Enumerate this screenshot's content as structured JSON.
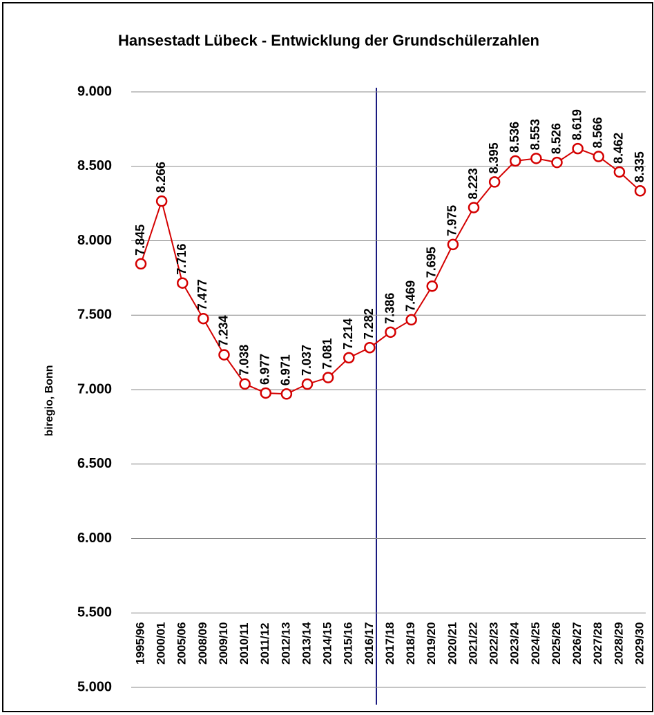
{
  "chart_data": {
    "type": "line",
    "title": "Hansestadt Lübeck - Entwicklung der Grundschülerzahlen",
    "y_label": "biregio, Bonn",
    "categories": [
      "1995/96",
      "2000/01",
      "2005/06",
      "2008/09",
      "2009/10",
      "2010/11",
      "2011/12",
      "2012/13",
      "2013/14",
      "2014/15",
      "2015/16",
      "2016/17",
      "2017/18",
      "2018/19",
      "2019/20",
      "2020/21",
      "2021/22",
      "2022/23",
      "2023/24",
      "2024/25",
      "2025/26",
      "2026/27",
      "2027/28",
      "2028/29",
      "2029/30"
    ],
    "series": [
      {
        "color": "#d40000",
        "values": [
          7845,
          8266,
          7716,
          7477,
          7234,
          7038,
          6977,
          6971,
          7037,
          7081,
          7214,
          7282,
          7386,
          7469,
          7695,
          7975,
          8223,
          8395,
          8536,
          8553,
          8526,
          8619,
          8566,
          8462,
          8335
        ],
        "value_labels": [
          "7.845",
          "8.266",
          "7.716",
          "7.477",
          "7.234",
          "7.038",
          "6.977",
          "6.971",
          "7.037",
          "7.081",
          "7.214",
          "7.282",
          "7.386",
          "7.469",
          "7.695",
          "7.975",
          "8.223",
          "8.395",
          "8.536",
          "8.553",
          "8.526",
          "8.619",
          "8.566",
          "8.462",
          "8.335"
        ]
      }
    ],
    "ylim": [
      5000,
      9000
    ],
    "yticks": [
      {
        "value": 5000,
        "label": "5.000"
      },
      {
        "value": 5500,
        "label": "5.500"
      },
      {
        "value": 6000,
        "label": "6.000"
      },
      {
        "value": 6500,
        "label": "6.500"
      },
      {
        "value": 7000,
        "label": "7.000"
      },
      {
        "value": 7500,
        "label": "7.500"
      },
      {
        "value": 8000,
        "label": "8.000"
      },
      {
        "value": 8500,
        "label": "8.500"
      },
      {
        "value": 9000,
        "label": "9.000"
      }
    ],
    "grid": true
  }
}
